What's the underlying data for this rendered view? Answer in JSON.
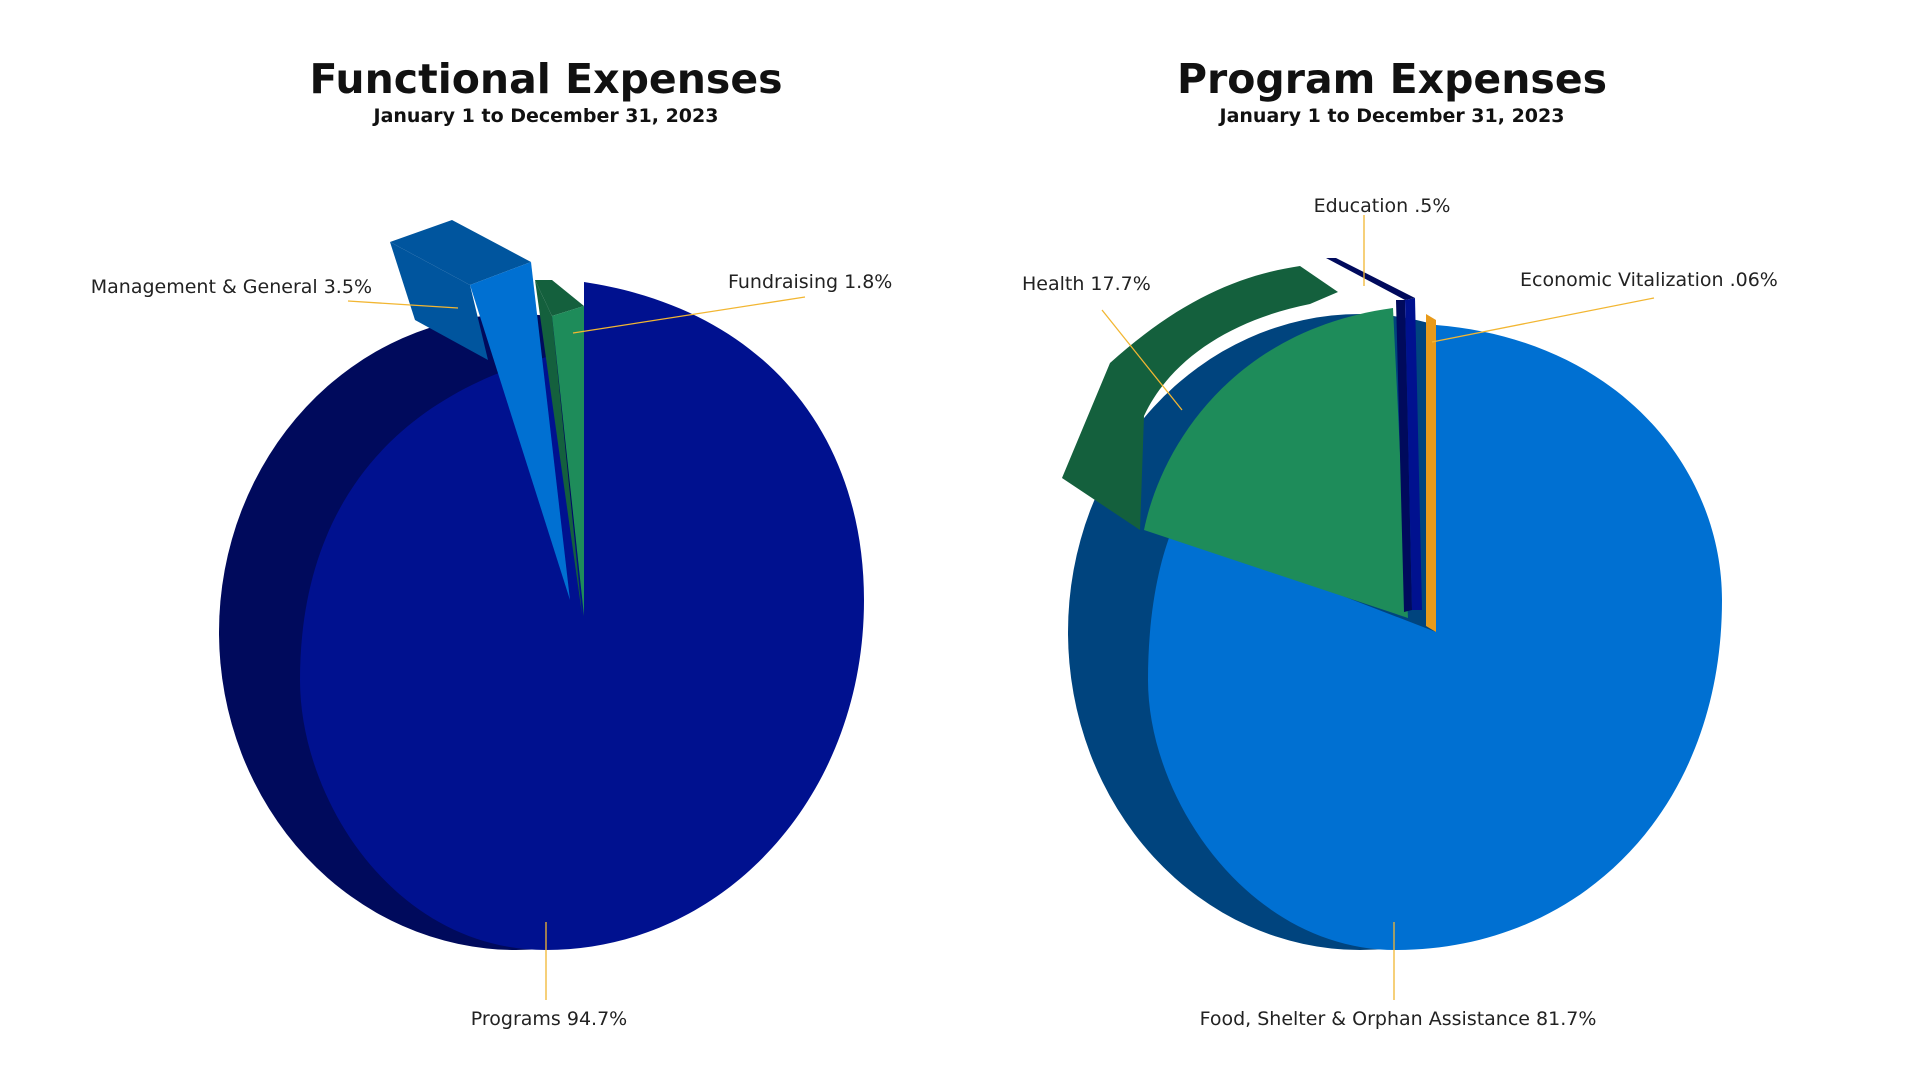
{
  "chart_data": [
    {
      "type": "pie",
      "title": "Functional Expenses",
      "subtitle": "January 1 to December 31, 2023",
      "slices": [
        {
          "label": "Programs",
          "display": "Programs 94.7%",
          "value": 94.7,
          "color": "#00118F",
          "side_color": "#000A5C",
          "exploded": false
        },
        {
          "label": "Management & General",
          "display": "Management & General 3.5%",
          "value": 3.5,
          "color": "#0070D2",
          "side_color": "#00559E",
          "exploded": true
        },
        {
          "label": "Fundraising",
          "display": "Fundraising 1.8%",
          "value": 1.8,
          "color": "#1E8C5A",
          "side_color": "#14603D",
          "exploded": false
        }
      ],
      "leader_color": "#F2B632"
    },
    {
      "type": "pie",
      "title": "Program Expenses",
      "subtitle": "January 1 to December 31, 2023",
      "slices": [
        {
          "label": "Food, Shelter & Orphan Assistance",
          "display": "Food, Shelter & Orphan Assistance 81.7%",
          "value": 81.7,
          "color": "#0070D2",
          "side_color": "#00447E",
          "exploded": false
        },
        {
          "label": "Health",
          "display": "Health 17.7%",
          "value": 17.7,
          "color": "#1E8C5A",
          "side_color": "#14603D",
          "exploded": true
        },
        {
          "label": "Education",
          "display": "Education .5%",
          "value": 0.5,
          "color": "#00118F",
          "side_color": "#000A5C",
          "exploded": false
        },
        {
          "label": "Economic Vitalization",
          "display": "Economic Vitalization .06%",
          "value": 0.06,
          "color": "#E89A1A",
          "side_color": "#A86A0E",
          "exploded": false
        }
      ],
      "leader_color": "#F2B632"
    }
  ]
}
